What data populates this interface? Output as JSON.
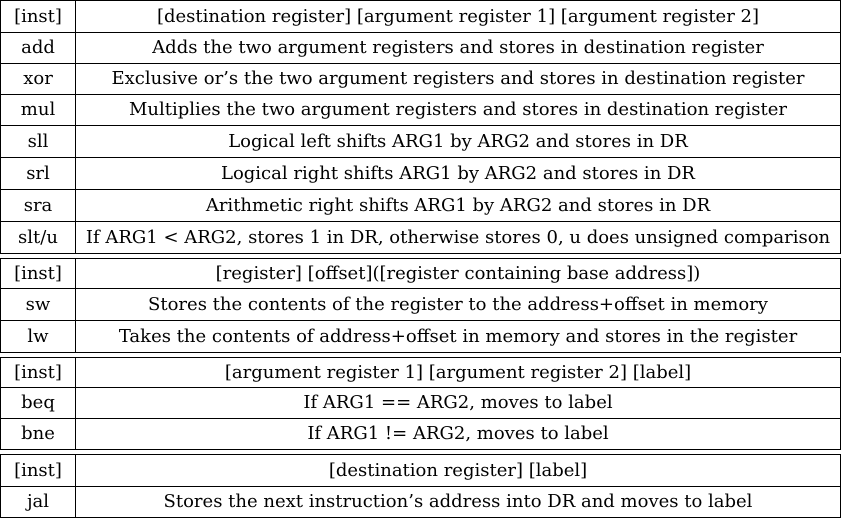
{
  "groups": [
    {
      "header": {
        "inst": "[inst]",
        "format": "[destination register] [argument register 1] [argument register 2]"
      },
      "rows": [
        {
          "inst": "add",
          "desc": "Adds the two argument registers and stores in destination register"
        },
        {
          "inst": "xor",
          "desc": "Exclusive or’s the two argument registers and stores in destination register"
        },
        {
          "inst": "mul",
          "desc": "Multiplies the two argument registers and stores in destination register"
        },
        {
          "inst": "sll",
          "desc": "Logical left shifts ARG1 by ARG2 and stores in DR"
        },
        {
          "inst": "srl",
          "desc": "Logical right shifts ARG1 by ARG2 and stores in DR"
        },
        {
          "inst": "sra",
          "desc": "Arithmetic right shifts ARG1 by ARG2 and stores in DR"
        },
        {
          "inst": "slt/u",
          "desc": "If ARG1 < ARG2, stores 1 in DR, otherwise stores 0, u does unsigned comparison"
        }
      ]
    },
    {
      "header": {
        "inst": "[inst]",
        "format": "[register] [offset]([register containing base address])"
      },
      "rows": [
        {
          "inst": "sw",
          "desc": "Stores the contents of the register to the address+offset in memory"
        },
        {
          "inst": "lw",
          "desc": "Takes the contents of address+offset in memory and stores in the register"
        }
      ]
    },
    {
      "header": {
        "inst": "[inst]",
        "format": "[argument register 1] [argument register 2] [label]"
      },
      "rows": [
        {
          "inst": "beq",
          "desc": "If ARG1 == ARG2, moves to label"
        },
        {
          "inst": "bne",
          "desc": "If ARG1 != ARG2, moves to label"
        }
      ]
    },
    {
      "header": {
        "inst": "[inst]",
        "format": "[destination register] [label]"
      },
      "rows": [
        {
          "inst": "jal",
          "desc": "Stores the next instruction’s address into DR and moves to label"
        }
      ]
    }
  ]
}
